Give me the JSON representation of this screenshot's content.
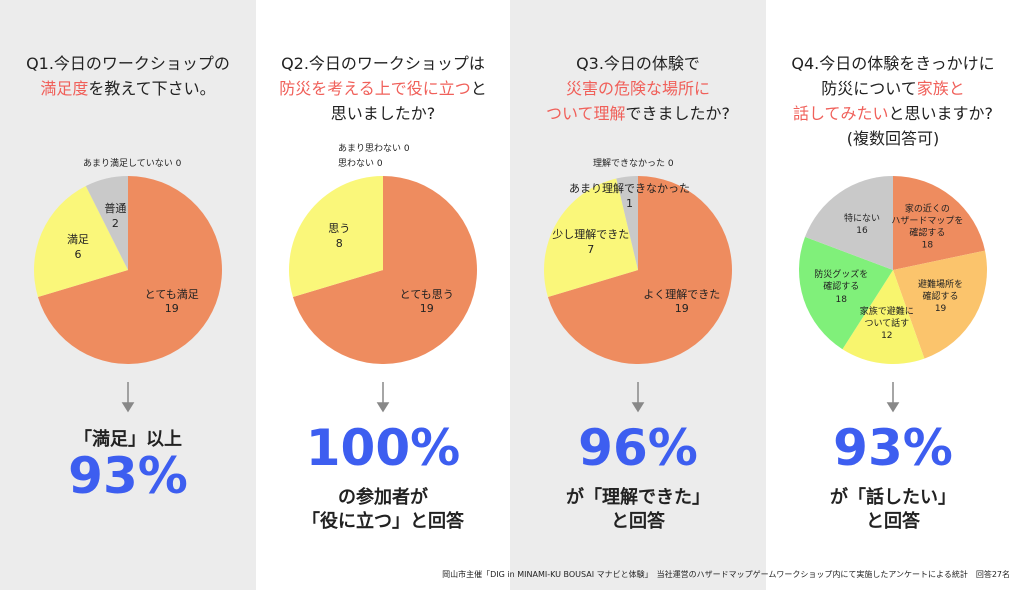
{
  "chart_data": [
    {
      "type": "pie",
      "highlight_color": "#f0605a",
      "title_lines": [
        [
          {
            "text": "Q1.今日のワークショップの"
          }
        ],
        [
          {
            "text": "満足度",
            "highlight": true
          },
          {
            "text": "を教えて下さい。"
          }
        ]
      ],
      "categories": [
        "とても満足",
        "満足",
        "普通",
        "あまり満足していない"
      ],
      "values": [
        19,
        6,
        2,
        0
      ],
      "colors": [
        "#ee8c5f",
        "#faf77a",
        "#c9c9c9",
        "#c9c9c9"
      ],
      "result_before": [
        "「満足」以上"
      ],
      "result": "93%",
      "result_after": []
    },
    {
      "type": "pie",
      "highlight_color": "#f0605a",
      "title_lines": [
        [
          {
            "text": "Q2.今日のワークショップは"
          }
        ],
        [
          {
            "text": "防災を考える上で役に立つ",
            "highlight": true
          },
          {
            "text": "と"
          }
        ],
        [
          {
            "text": "思いましたか?"
          }
        ]
      ],
      "categories": [
        "とても思う",
        "思う",
        "あまり思わない",
        "思わない"
      ],
      "values": [
        19,
        8,
        0,
        0
      ],
      "colors": [
        "#ee8c5f",
        "#faf77a",
        "#c9c9c9",
        "#c9c9c9"
      ],
      "result_before": [],
      "result": "100%",
      "result_after": [
        "の参加者が",
        "「役に立つ」と回答"
      ]
    },
    {
      "type": "pie",
      "highlight_color": "#f0605a",
      "title_lines": [
        [
          {
            "text": "Q3.今日の体験で"
          }
        ],
        [
          {
            "text": "災害の危険な場所に",
            "highlight": true
          }
        ],
        [
          {
            "text": "ついて理解",
            "highlight": true
          },
          {
            "text": "できましたか?"
          }
        ]
      ],
      "categories": [
        "よく理解できた",
        "少し理解できた",
        "あまり理解できなかった",
        "理解できなかった"
      ],
      "values": [
        19,
        7,
        1,
        0
      ],
      "colors": [
        "#ee8c5f",
        "#faf77a",
        "#c9c9c9",
        "#c9c9c9"
      ],
      "result_before": [],
      "result": "96%",
      "result_after": [
        "が「理解できた」",
        "と回答"
      ]
    },
    {
      "type": "pie",
      "highlight_color": "#f0605a",
      "title_lines": [
        [
          {
            "text": "Q4.今日の体験をきっかけに"
          }
        ],
        [
          {
            "text": "防災について"
          },
          {
            "text": "家族と",
            "highlight": true
          }
        ],
        [
          {
            "text": "話してみたい",
            "highlight": true
          },
          {
            "text": "と思いますか?"
          }
        ],
        [
          {
            "text": "(複数回答可)"
          }
        ]
      ],
      "categories": [
        "家の近くの\nハザードマップを\n確認する",
        "避難場所を\n確認する",
        "家族で避難に\nついて話す",
        "防災グッズを\n確認する",
        "特にない"
      ],
      "values": [
        18,
        19,
        12,
        18,
        16
      ],
      "colors": [
        "#ee8c5f",
        "#fbc46c",
        "#f8f56e",
        "#80f07a",
        "#c9c9c9"
      ],
      "result_before": [],
      "result": "93%",
      "result_after": [
        "が「話したい」",
        "と回答"
      ]
    }
  ],
  "footer": "岡山市主催「DIG in MINAMI-KU BOUSAI マナビと体験」　当社運営のハザードマップゲームワークショップ内にて実施したアンケートによる統計　回答27名"
}
